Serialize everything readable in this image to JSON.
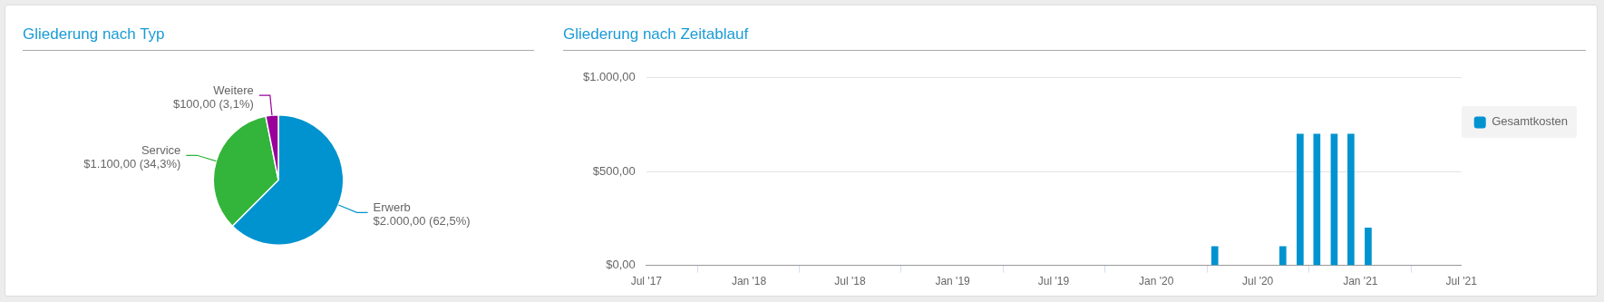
{
  "chart_data": [
    {
      "type": "pie",
      "title": "Gliederung nach Typ",
      "categories": [
        "Erwerb",
        "Service",
        "Weitere"
      ],
      "values": [
        2000,
        1100,
        100
      ],
      "colors": [
        "#0093d0",
        "#33b43a",
        "#990099"
      ],
      "value_labels": [
        "$2.000,00 (62,5%)",
        "$1.100,00 (34,3%)",
        "$100,00 (3,1%)"
      ],
      "legend": false
    },
    {
      "type": "bar",
      "title": "Gliederung nach Zeitablauf",
      "x": [
        "2020-04-15",
        "2020-08-15",
        "2020-09-15",
        "2020-10-15",
        "2020-11-15",
        "2020-12-15",
        "2021-01-15"
      ],
      "series": [
        {
          "name": "Gesamtkosten",
          "color": "#0093d0",
          "values": [
            100,
            100,
            700,
            700,
            700,
            700,
            200
          ]
        }
      ],
      "xlim": [
        "2017-07",
        "2021-07"
      ],
      "xticks": [
        {
          "value": "2017-07",
          "label": "Jul '17"
        },
        {
          "value": "2018-01",
          "label": "Jan '18"
        },
        {
          "value": "2018-07",
          "label": "Jul '18"
        },
        {
          "value": "2019-01",
          "label": "Jan '19"
        },
        {
          "value": "2019-07",
          "label": "Jul '19"
        },
        {
          "value": "2020-01",
          "label": "Jan '20"
        },
        {
          "value": "2020-07",
          "label": "Jul '20"
        },
        {
          "value": "2021-01",
          "label": "Jan '21"
        },
        {
          "value": "2021-07",
          "label": "Jul '21"
        }
      ],
      "ylim": [
        0,
        1000
      ],
      "yticks": [
        {
          "value": 0,
          "label": "$0,00"
        },
        {
          "value": 500,
          "label": "$500,00"
        },
        {
          "value": 1000,
          "label": "$1.000,00"
        }
      ],
      "grid": "y",
      "legend": "top right"
    }
  ]
}
